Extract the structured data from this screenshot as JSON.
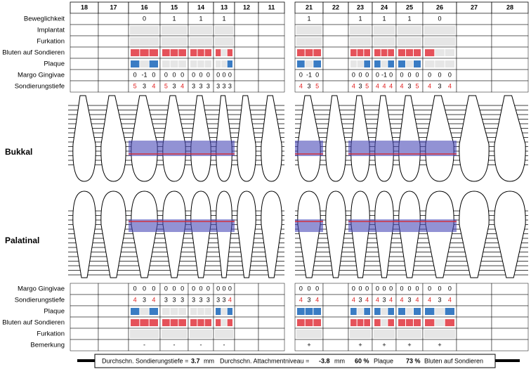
{
  "labels": {
    "top": [
      "Beweglichkeit",
      "Implantat",
      "Furkation",
      "Bluten auf Sondieren",
      "Plaque",
      "Margo Gingivae",
      "Sondierungstiefe"
    ],
    "bottom": [
      "Margo Gingivae",
      "Sondierungstiefe",
      "Plaque",
      "Bluten auf Sondieren",
      "Furkation",
      "Bemerkung"
    ],
    "buccal": "Bukkal",
    "palatal": "Palatinal"
  },
  "teeth": [
    {
      "number": "18"
    },
    {
      "number": "17"
    },
    {
      "number": "16",
      "mobility": 0,
      "buccal": {
        "bleeding": [
          true,
          true,
          true
        ],
        "plaque": [
          true,
          false,
          true
        ],
        "margin": [
          0,
          -1,
          0
        ],
        "depth": [
          5,
          3,
          4
        ]
      },
      "palatal": {
        "bleeding": [
          true,
          true,
          true
        ],
        "plaque": [
          true,
          false,
          true
        ],
        "margin": [
          0,
          0,
          0
        ],
        "depth": [
          4,
          3,
          4
        ]
      },
      "remark": "-"
    },
    {
      "number": "15",
      "mobility": 1,
      "buccal": {
        "bleeding": [
          true,
          true,
          true
        ],
        "plaque": [
          false,
          false,
          false
        ],
        "margin": [
          0,
          0,
          0
        ],
        "depth": [
          5,
          3,
          4
        ]
      },
      "palatal": {
        "bleeding": [
          true,
          true,
          true
        ],
        "plaque": [
          false,
          false,
          false
        ],
        "margin": [
          0,
          0,
          0
        ],
        "depth": [
          3,
          3,
          3
        ]
      },
      "remark": "-"
    },
    {
      "number": "14",
      "mobility": 1,
      "buccal": {
        "bleeding": [
          true,
          true,
          true
        ],
        "plaque": [
          false,
          false,
          false
        ],
        "margin": [
          0,
          0,
          0
        ],
        "depth": [
          3,
          3,
          3
        ]
      },
      "palatal": {
        "bleeding": [
          true,
          true,
          true
        ],
        "plaque": [
          false,
          false,
          false
        ],
        "margin": [
          0,
          0,
          0
        ],
        "depth": [
          3,
          3,
          3
        ]
      },
      "remark": "-"
    },
    {
      "number": "13",
      "mobility": 1,
      "buccal": {
        "bleeding": [
          true,
          false,
          true
        ],
        "plaque": [
          false,
          false,
          true
        ],
        "margin": [
          0,
          0,
          0
        ],
        "depth": [
          3,
          3,
          3
        ]
      },
      "palatal": {
        "bleeding": [
          true,
          false,
          true
        ],
        "plaque": [
          true,
          false,
          true
        ],
        "margin": [
          0,
          0,
          0
        ],
        "depth": [
          3,
          3,
          4
        ]
      },
      "remark": "-"
    },
    {
      "number": "12"
    },
    {
      "number": "11"
    },
    {
      "number": "21",
      "mobility": 1,
      "buccal": {
        "bleeding": [
          true,
          true,
          true
        ],
        "plaque": [
          true,
          false,
          true
        ],
        "margin": [
          0,
          -1,
          0
        ],
        "depth": [
          4,
          3,
          5
        ]
      },
      "palatal": {
        "bleeding": [
          true,
          true,
          true
        ],
        "plaque": [
          true,
          true,
          true
        ],
        "margin": [
          0,
          0,
          0
        ],
        "depth": [
          4,
          3,
          4
        ]
      },
      "remark": "+"
    },
    {
      "number": "22"
    },
    {
      "number": "23",
      "mobility": 1,
      "buccal": {
        "bleeding": [
          true,
          true,
          true
        ],
        "plaque": [
          false,
          false,
          true
        ],
        "margin": [
          0,
          0,
          0
        ],
        "depth": [
          4,
          3,
          5
        ]
      },
      "palatal": {
        "bleeding": [
          true,
          true,
          true
        ],
        "plaque": [
          true,
          false,
          true
        ],
        "margin": [
          0,
          0,
          0
        ],
        "depth": [
          4,
          3,
          4
        ]
      },
      "remark": "+"
    },
    {
      "number": "24",
      "mobility": 1,
      "buccal": {
        "bleeding": [
          true,
          true,
          true
        ],
        "plaque": [
          true,
          false,
          true
        ],
        "margin": [
          0,
          -1,
          0
        ],
        "depth": [
          4,
          4,
          4
        ]
      },
      "palatal": {
        "bleeding": [
          true,
          false,
          true
        ],
        "plaque": [
          true,
          false,
          true
        ],
        "margin": [
          0,
          0,
          0
        ],
        "depth": [
          4,
          3,
          4
        ]
      },
      "remark": "+"
    },
    {
      "number": "25",
      "mobility": 1,
      "buccal": {
        "bleeding": [
          true,
          true,
          true
        ],
        "plaque": [
          true,
          false,
          true
        ],
        "margin": [
          0,
          0,
          0
        ],
        "depth": [
          4,
          3,
          5
        ]
      },
      "palatal": {
        "bleeding": [
          true,
          true,
          true
        ],
        "plaque": [
          true,
          false,
          true
        ],
        "margin": [
          0,
          0,
          0
        ],
        "depth": [
          4,
          3,
          4
        ]
      },
      "remark": "+"
    },
    {
      "number": "26",
      "mobility": 0,
      "buccal": {
        "bleeding": [
          true,
          false,
          false
        ],
        "plaque": [
          false,
          false,
          false
        ],
        "margin": [
          0,
          0,
          0
        ],
        "depth": [
          4,
          3,
          4
        ]
      },
      "palatal": {
        "bleeding": [
          true,
          false,
          true
        ],
        "plaque": [
          true,
          false,
          true
        ],
        "margin": [
          0,
          0,
          0
        ],
        "depth": [
          4,
          3,
          4
        ]
      },
      "remark": "+"
    },
    {
      "number": "27"
    },
    {
      "number": "28"
    }
  ],
  "footer": {
    "depth_label": "Durchschn. Sondierungstiefe =",
    "depth_value": "3.7",
    "depth_unit": "mm",
    "attachment_label": "Durchschn. Attachmentniveau =",
    "attachment_value": "-3.8",
    "attachment_unit": "mm",
    "plaque_value": "60 %",
    "plaque_label": "Plaque",
    "bleeding_value": "73 %",
    "bleeding_label": "Bluten auf Sondieren"
  }
}
